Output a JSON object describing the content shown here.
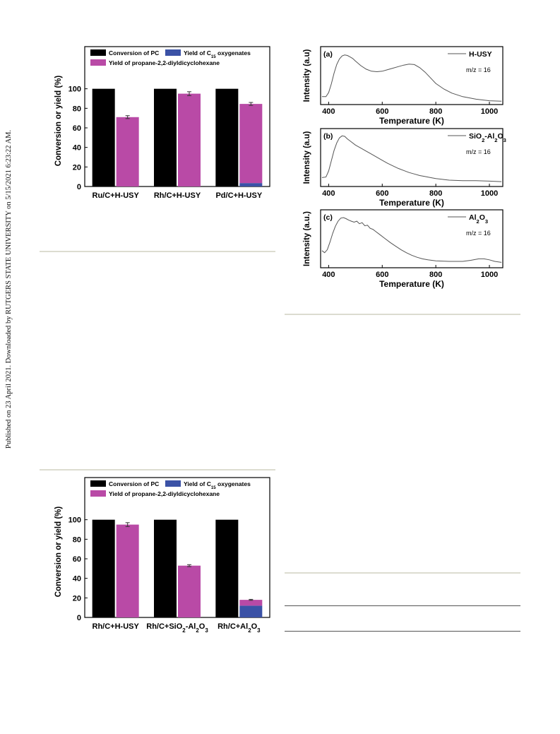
{
  "sidebar_text": "Published on 23 April 2021. Downloaded by RUTGERS STATE UNIVERSITY on 5/15/2021 6:23:22 AM.",
  "chart_data": [
    {
      "id": "bar-top",
      "type": "bar",
      "ylabel": "Conversion or yield (%)",
      "ylim": [
        0,
        120
      ],
      "yticks": [
        0,
        20,
        40,
        60,
        80,
        100
      ],
      "categories": [
        "Ru/C+H-USY",
        "Rh/C+H-USY",
        "Pd/C+H-USY"
      ],
      "series": [
        {
          "name": "Conversion of PC",
          "color": "#000000",
          "values": [
            100,
            100,
            100
          ]
        },
        {
          "name": "Yield of propane-2,2-diyldicyclohexane",
          "color": "#b94aa6",
          "values": [
            71,
            95,
            81
          ],
          "stack_with": "Yield of C15 oxygenates"
        },
        {
          "name": "Yield of C15 oxygenates",
          "color": "#3b52a6",
          "values": [
            0,
            0,
            3.5
          ]
        }
      ],
      "error_bars": [
        1.5,
        2,
        1.5
      ],
      "legend": "top"
    },
    {
      "id": "bar-bottom",
      "type": "bar",
      "ylabel": "Conversion or yield (%)",
      "ylim": [
        0,
        120
      ],
      "yticks": [
        0,
        20,
        40,
        60,
        80,
        100
      ],
      "categories": [
        "Rh/C+H-USY",
        "Rh/C+SiO2-Al2O3",
        "Rh/C+Al2O3"
      ],
      "series": [
        {
          "name": "Conversion of PC",
          "color": "#000000",
          "values": [
            100,
            100,
            100
          ]
        },
        {
          "name": "Yield of propane-2,2-diyldicyclohexane",
          "color": "#b94aa6",
          "values": [
            95,
            53,
            6
          ],
          "stack_with": "Yield of C15 oxygenates"
        },
        {
          "name": "Yield of C15 oxygenates",
          "color": "#3b52a6",
          "values": [
            0,
            0,
            12
          ]
        }
      ],
      "error_bars": [
        2,
        1,
        0.5
      ],
      "legend": "top"
    },
    {
      "id": "tpd-a",
      "type": "line",
      "panel": "(a)",
      "legend": "H-USY",
      "annotation": "m/z = 16",
      "xlabel": "Temperature (K)",
      "ylabel": "Intensity (a.u)",
      "xlim": [
        370,
        1050
      ],
      "xticks": [
        400,
        600,
        800,
        1000
      ],
      "ylim": [
        0,
        1
      ],
      "x": [
        375,
        390,
        400,
        410,
        420,
        430,
        440,
        450,
        460,
        470,
        480,
        490,
        500,
        520,
        540,
        560,
        580,
        600,
        620,
        640,
        660,
        680,
        700,
        720,
        740,
        760,
        780,
        800,
        830,
        860,
        900,
        950,
        1000,
        1045
      ],
      "y": [
        0.1,
        0.1,
        0.18,
        0.35,
        0.56,
        0.73,
        0.84,
        0.9,
        0.92,
        0.91,
        0.88,
        0.85,
        0.8,
        0.71,
        0.64,
        0.6,
        0.59,
        0.6,
        0.63,
        0.66,
        0.69,
        0.72,
        0.74,
        0.73,
        0.67,
        0.58,
        0.47,
        0.36,
        0.25,
        0.17,
        0.1,
        0.05,
        0.02,
        0.01
      ]
    },
    {
      "id": "tpd-b",
      "type": "line",
      "panel": "(b)",
      "legend": "SiO2-Al2O3",
      "annotation": "m/z = 16",
      "xlabel": "Temperature (K)",
      "ylabel": "Intensity (a.u)",
      "xlim": [
        370,
        1050
      ],
      "xticks": [
        400,
        600,
        800,
        1000
      ],
      "ylim": [
        0,
        1
      ],
      "x": [
        375,
        390,
        400,
        410,
        420,
        430,
        440,
        450,
        460,
        470,
        480,
        500,
        520,
        540,
        560,
        580,
        600,
        620,
        640,
        660,
        680,
        700,
        720,
        740,
        760,
        780,
        800,
        850,
        900,
        950,
        1000,
        1045
      ],
      "y": [
        0.12,
        0.13,
        0.25,
        0.45,
        0.65,
        0.8,
        0.9,
        0.94,
        0.93,
        0.88,
        0.84,
        0.76,
        0.7,
        0.64,
        0.58,
        0.52,
        0.46,
        0.4,
        0.35,
        0.3,
        0.26,
        0.22,
        0.19,
        0.16,
        0.14,
        0.12,
        0.1,
        0.07,
        0.06,
        0.06,
        0.05,
        0.04
      ]
    },
    {
      "id": "tpd-c",
      "type": "line",
      "panel": "(c)",
      "legend": "Al2O3",
      "annotation": "m/z = 16",
      "xlabel": "Temperature (K)",
      "ylabel": "Intensity (a.u.)",
      "xlim": [
        370,
        1050
      ],
      "xticks": [
        400,
        600,
        800,
        1000
      ],
      "ylim": [
        0,
        1
      ],
      "x": [
        375,
        385,
        395,
        405,
        415,
        425,
        435,
        445,
        455,
        465,
        475,
        485,
        495,
        505,
        515,
        525,
        535,
        545,
        555,
        565,
        575,
        590,
        610,
        630,
        650,
        670,
        690,
        710,
        730,
        750,
        770,
        800,
        850,
        900,
        930,
        960,
        980,
        1000,
        1020,
        1045
      ],
      "y": [
        0.28,
        0.24,
        0.3,
        0.45,
        0.62,
        0.76,
        0.86,
        0.92,
        0.93,
        0.91,
        0.88,
        0.86,
        0.84,
        0.86,
        0.81,
        0.83,
        0.77,
        0.78,
        0.72,
        0.7,
        0.66,
        0.6,
        0.52,
        0.44,
        0.37,
        0.3,
        0.24,
        0.19,
        0.15,
        0.12,
        0.1,
        0.08,
        0.07,
        0.07,
        0.09,
        0.12,
        0.12,
        0.1,
        0.07,
        0.05
      ]
    }
  ]
}
